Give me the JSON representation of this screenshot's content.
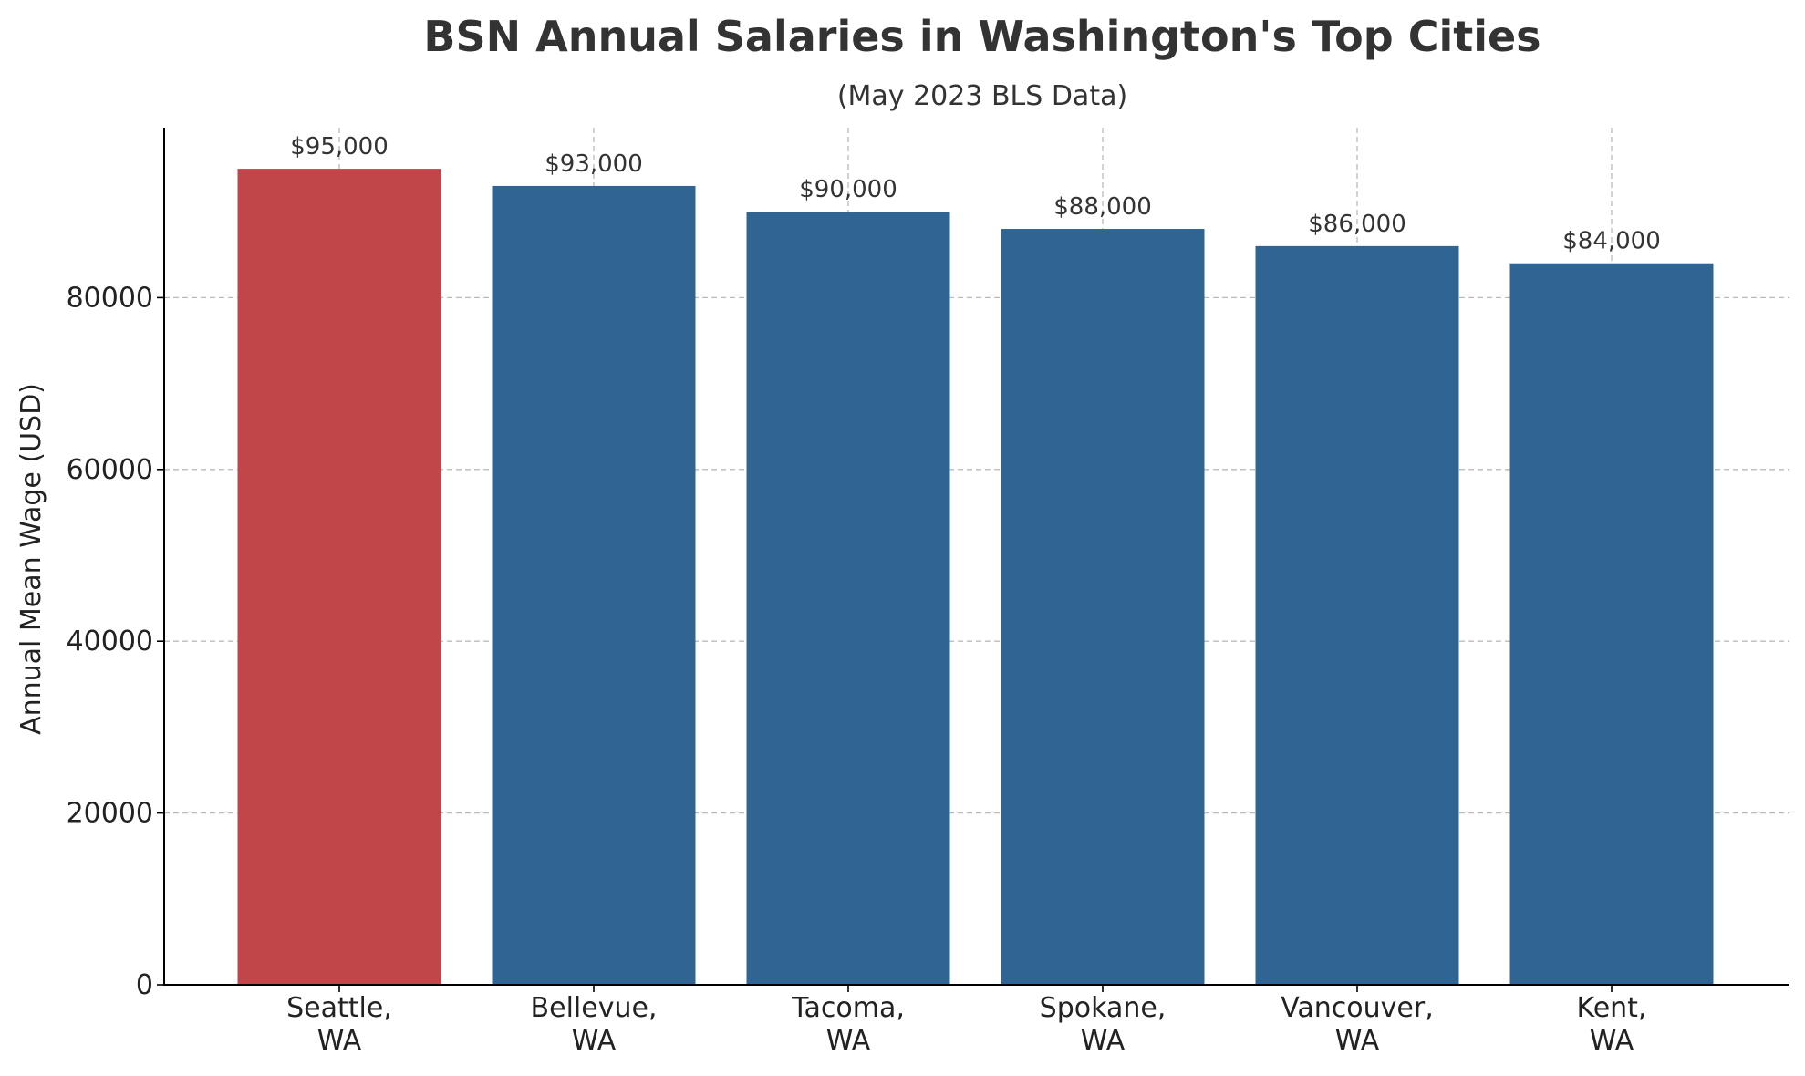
{
  "chart_data": {
    "type": "bar",
    "title": "BSN Annual Salaries in Washington's Top Cities",
    "subtitle": "(May 2023 BLS Data)",
    "xlabel": "",
    "ylabel": "Annual Mean Wage (USD)",
    "categories": [
      [
        "Seattle,",
        "WA"
      ],
      [
        "Bellevue,",
        "WA"
      ],
      [
        "Tacoma,",
        "WA"
      ],
      [
        "Spokane,",
        "WA"
      ],
      [
        "Vancouver,",
        "WA"
      ],
      [
        "Kent,",
        "WA"
      ]
    ],
    "values": [
      95000,
      93000,
      90000,
      88000,
      86000,
      84000
    ],
    "data_labels": [
      "$95,000",
      "$93,000",
      "$90,000",
      "$88,000",
      "$86,000",
      "$84,000"
    ],
    "bar_colors": [
      "#c0464a",
      "#2f6493",
      "#2f6493",
      "#2f6493",
      "#2f6493",
      "#2f6493"
    ],
    "ylim": [
      0,
      100000
    ],
    "yticks": [
      0,
      20000,
      40000,
      60000,
      80000
    ],
    "ytick_labels": [
      "0",
      "20000",
      "40000",
      "60000",
      "80000"
    ],
    "grid": true,
    "legend": "none"
  }
}
